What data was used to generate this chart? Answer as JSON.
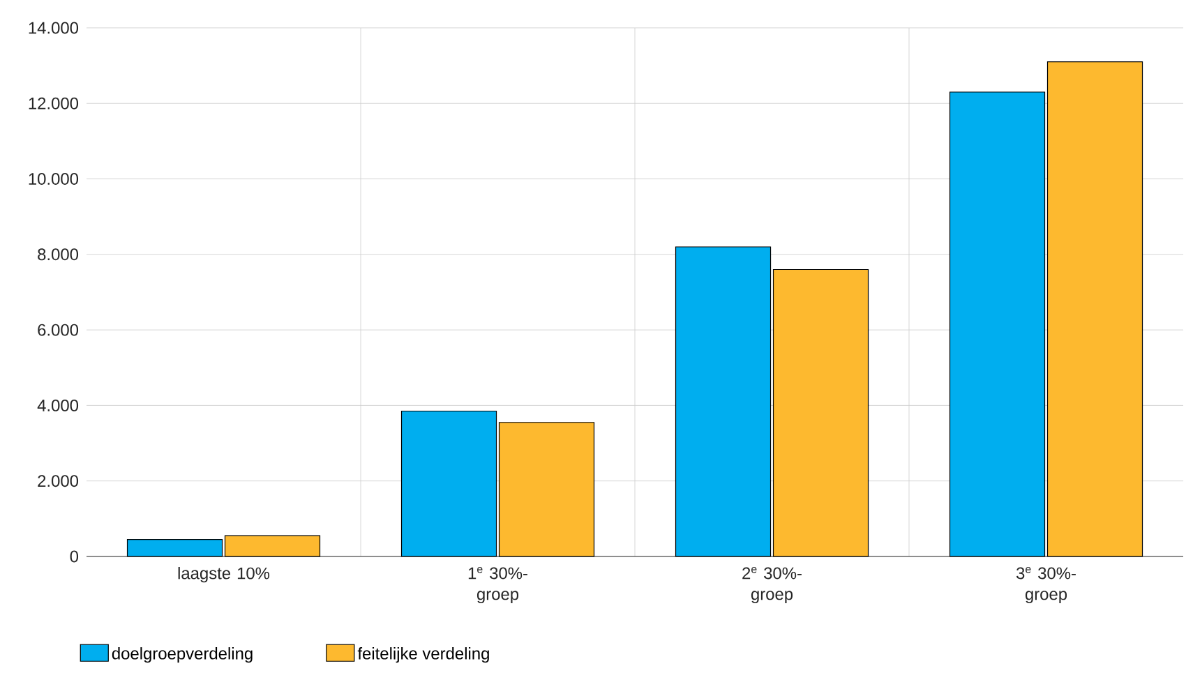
{
  "chart_data": {
    "type": "bar",
    "categories": [
      "laagste 10%",
      "1$^{e}$ 30%-groep",
      "2$^{e}$ 30%-groep",
      "3$^{e}$ 30%-groep"
    ],
    "series": [
      {
        "name": "doelgroepverdeling",
        "color": "#00aeef",
        "values": [
          450,
          3850,
          8200,
          12300
        ]
      },
      {
        "name": "feitelijke verdeling",
        "color": "#fdb92f",
        "values": [
          550,
          3550,
          7600,
          13100
        ]
      }
    ],
    "ylim": [
      0,
      14000
    ],
    "yticks": [
      {
        "value": 0,
        "label": "0"
      },
      {
        "value": 2000,
        "label": "2.000"
      },
      {
        "value": 4000,
        "label": "4.000"
      },
      {
        "value": 6000,
        "label": "6.000"
      },
      {
        "value": 8000,
        "label": "8.000"
      },
      {
        "value": 10000,
        "label": "10.000"
      },
      {
        "value": 12000,
        "label": "12.000"
      },
      {
        "value": 14000,
        "label": "14.000"
      }
    ],
    "grid": true,
    "legend": "bottom left"
  }
}
